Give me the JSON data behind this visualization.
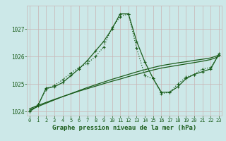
{
  "title": "Graphe pression niveau de la mer (hPa)",
  "bg_color": "#cce8e8",
  "grid_color": "#c8b4b4",
  "line_color": "#1a5c1a",
  "x_values": [
    0,
    1,
    2,
    3,
    4,
    5,
    6,
    7,
    8,
    9,
    10,
    11,
    12,
    13,
    14,
    15,
    16,
    17,
    18,
    19,
    20,
    21,
    22,
    23
  ],
  "y_curve1": [
    1024.0,
    1024.2,
    1024.85,
    1024.9,
    1025.05,
    1025.3,
    1025.55,
    1025.85,
    1026.2,
    1026.55,
    1027.0,
    1027.55,
    1027.55,
    1026.55,
    1025.8,
    1025.2,
    1024.7,
    1024.7,
    1024.9,
    1025.2,
    1025.35,
    1025.45,
    1025.55,
    1026.1
  ],
  "y_curve2": [
    1024.0,
    1024.25,
    1024.8,
    1024.95,
    1025.15,
    1025.4,
    1025.6,
    1025.75,
    1026.0,
    1026.35,
    1027.05,
    1027.45,
    1027.55,
    1026.3,
    1025.3,
    1025.2,
    1024.65,
    1024.7,
    1025.0,
    1025.25,
    1025.35,
    1025.55,
    1025.6,
    1026.05
  ],
  "y_trend1": [
    1024.05,
    1024.18,
    1024.3,
    1024.42,
    1024.54,
    1024.65,
    1024.76,
    1024.87,
    1024.97,
    1025.07,
    1025.17,
    1025.26,
    1025.35,
    1025.44,
    1025.52,
    1025.6,
    1025.67,
    1025.72,
    1025.77,
    1025.81,
    1025.86,
    1025.9,
    1025.95,
    1026.05
  ],
  "y_trend2": [
    1024.1,
    1024.22,
    1024.33,
    1024.44,
    1024.54,
    1024.64,
    1024.74,
    1024.83,
    1024.92,
    1025.01,
    1025.1,
    1025.18,
    1025.27,
    1025.35,
    1025.43,
    1025.51,
    1025.58,
    1025.63,
    1025.68,
    1025.73,
    1025.78,
    1025.83,
    1025.89,
    1026.0
  ],
  "ylim": [
    1023.85,
    1027.85
  ],
  "yticks": [
    1024,
    1025,
    1026,
    1027
  ],
  "xticks": [
    0,
    1,
    2,
    3,
    4,
    5,
    6,
    7,
    8,
    9,
    10,
    11,
    12,
    13,
    14,
    15,
    16,
    17,
    18,
    19,
    20,
    21,
    22,
    23
  ],
  "xlabel_fontsize": 6.5,
  "ylabel_fontsize": 5.5,
  "tick_fontsize": 5.0
}
